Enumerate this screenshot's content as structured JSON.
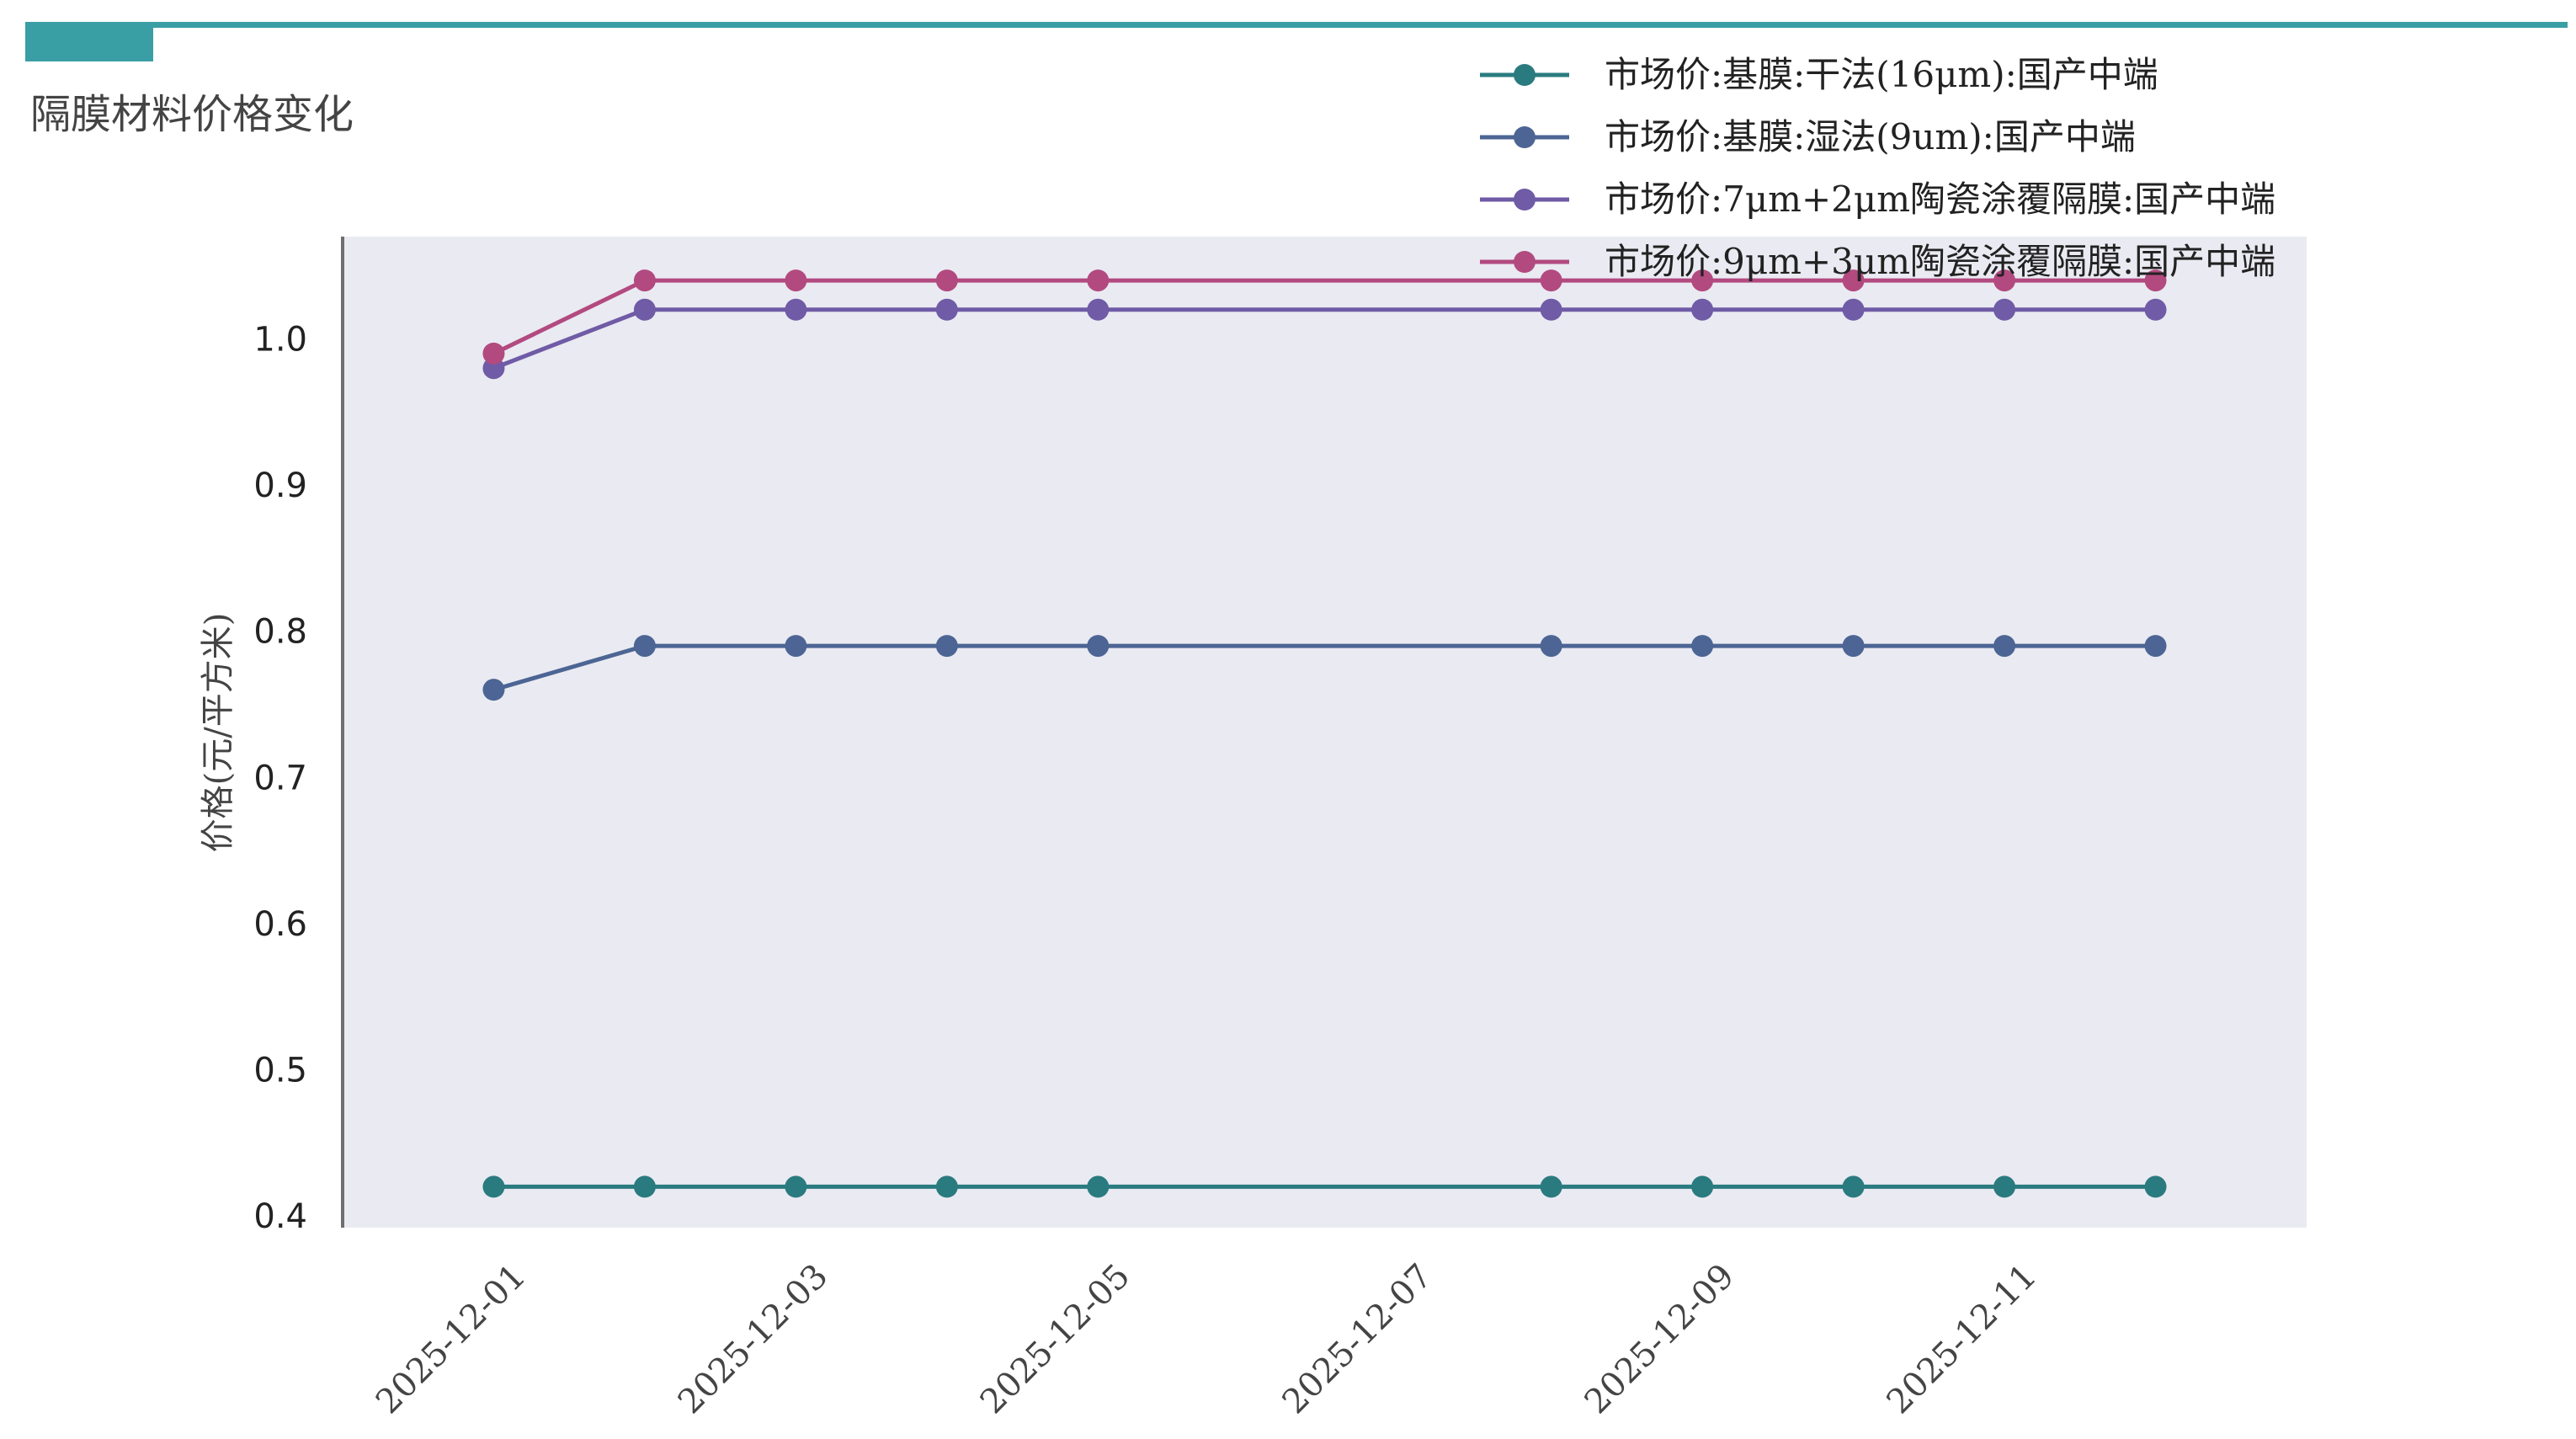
{
  "page": {
    "title": "隔膜材料价格变化",
    "header_color": "#3a9ea5"
  },
  "chart_data": {
    "type": "line",
    "title": "",
    "xlabel": "",
    "ylabel": "价格(元/平方米)",
    "x": [
      "2025-12-01",
      "2025-12-02",
      "2025-12-03",
      "2025-12-04",
      "2025-12-05",
      "2025-12-08",
      "2025-12-09",
      "2025-12-10",
      "2025-12-11",
      "2025-12-12"
    ],
    "xlim": [
      "2025-11-30",
      "2025-12-13"
    ],
    "xticks": [
      "2025-12-01",
      "2025-12-03",
      "2025-12-05",
      "2025-12-07",
      "2025-12-09",
      "2025-12-11"
    ],
    "ylim": [
      0.4,
      1.07
    ],
    "yticks": [
      0.4,
      0.5,
      0.6,
      0.7,
      0.8,
      0.9,
      1.0
    ],
    "grid": false,
    "legend_position": "top-right",
    "plot_background": "#eaeaf2",
    "series": [
      {
        "name": "市场价:基膜:干法(16μm):国产中端",
        "color": "#2a7b7f",
        "values": [
          0.42,
          0.42,
          0.42,
          0.42,
          0.42,
          0.42,
          0.42,
          0.42,
          0.42,
          0.42
        ]
      },
      {
        "name": "市场价:基膜:湿法(9um):国产中端",
        "color": "#4c6594",
        "values": [
          0.76,
          0.79,
          0.79,
          0.79,
          0.79,
          0.79,
          0.79,
          0.79,
          0.79,
          0.79
        ]
      },
      {
        "name": "市场价:7μm+2μm陶瓷涂覆隔膜:国产中端",
        "color": "#6f5ba6",
        "values": [
          0.98,
          1.02,
          1.02,
          1.02,
          1.02,
          1.02,
          1.02,
          1.02,
          1.02,
          1.02
        ]
      },
      {
        "name": "市场价:9μm+3μm陶瓷涂覆隔膜:国产中端",
        "color": "#b24a80",
        "values": [
          0.99,
          1.04,
          1.04,
          1.04,
          1.04,
          1.04,
          1.04,
          1.04,
          1.04,
          1.04
        ]
      }
    ]
  }
}
